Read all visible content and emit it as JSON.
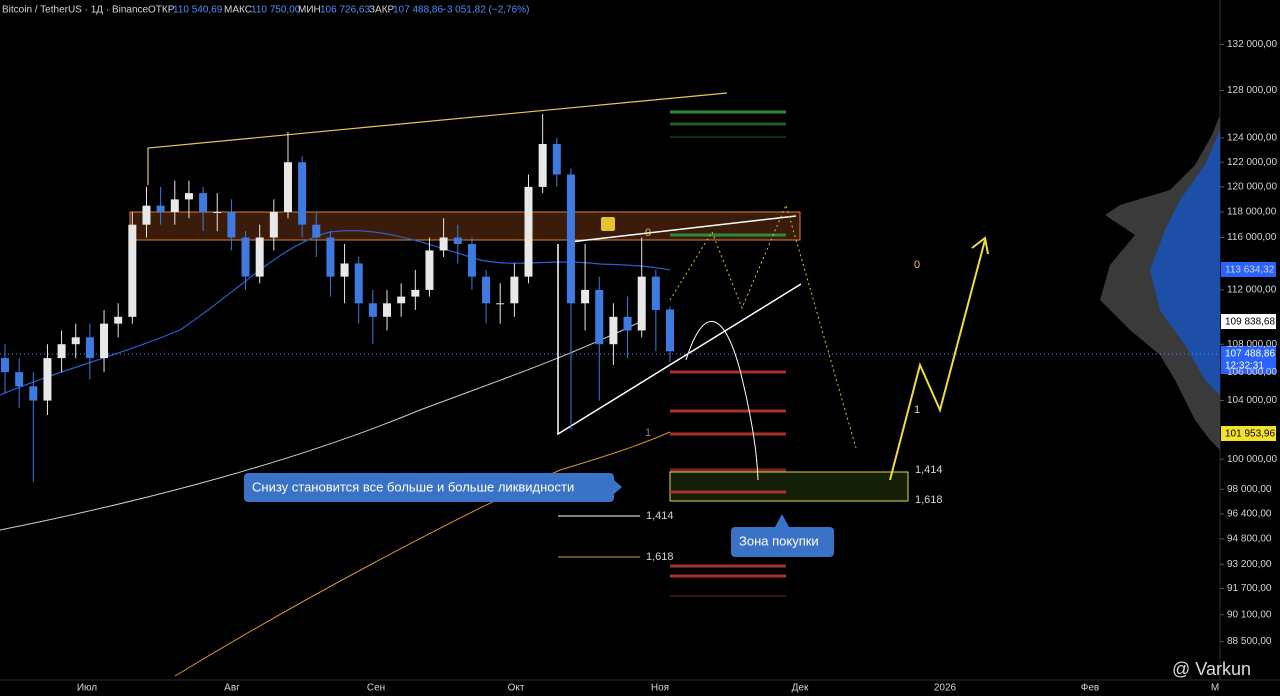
{
  "header": {
    "symbol": "Bitcoin / TetherUS · 1Д · Binance",
    "open_label": "ОТКР",
    "open": "110 540,69",
    "high_label": "МАКС",
    "high": "110 750,00",
    "low_label": "МИН",
    "low": "106 726,63",
    "close_label": "ЗАКР",
    "close": "107 488,86",
    "change": "−3 051,82 (−2,76%)"
  },
  "chart_data": {
    "type": "candlestick",
    "log_scale": true,
    "up_color": "#e8e8e8",
    "down_color": "#3d7be0",
    "open": [
      107000,
      106000,
      105000,
      104000,
      107000,
      108000,
      108500,
      107000,
      109500,
      110000,
      117000,
      118500,
      118000,
      119000,
      119500,
      118000,
      118000,
      116000,
      113000,
      116000,
      118000,
      122000,
      117000,
      116000,
      113000,
      114000,
      111000,
      110000,
      111000,
      111500,
      112000,
      115000,
      116000,
      115500,
      113000,
      111000,
      111000,
      113000,
      120000,
      123500,
      121000,
      111000,
      112000,
      108000,
      110000,
      109000,
      113000,
      110540.69
    ],
    "high": [
      108000,
      107000,
      106000,
      108000,
      109000,
      109500,
      109500,
      110500,
      111000,
      118000,
      120000,
      120000,
      120500,
      120500,
      120000,
      119500,
      119000,
      116500,
      117000,
      119000,
      124500,
      122500,
      118000,
      116500,
      115500,
      114500,
      112000,
      112000,
      112500,
      113500,
      116000,
      117500,
      117000,
      116000,
      113500,
      112500,
      114000,
      121000,
      126000,
      124000,
      121500,
      115500,
      113000,
      111000,
      111500,
      116000,
      113500,
      110750
    ],
    "low": [
      104500,
      103500,
      98500,
      103000,
      106000,
      107000,
      105500,
      106000,
      108500,
      109500,
      116000,
      117000,
      117000,
      117500,
      116500,
      116500,
      115000,
      112000,
      112500,
      115000,
      117500,
      116000,
      114500,
      111500,
      111000,
      109500,
      108000,
      109000,
      110000,
      110500,
      111500,
      114500,
      114000,
      112000,
      109500,
      109500,
      110000,
      112500,
      119500,
      120000,
      102000,
      109000,
      104000,
      106500,
      107000,
      108500,
      107500,
      106726.63
    ],
    "close": [
      106000,
      105000,
      104000,
      107000,
      108000,
      108500,
      107000,
      109500,
      110000,
      117000,
      118500,
      118000,
      119000,
      119500,
      118000,
      118000,
      116000,
      113000,
      116000,
      118000,
      122000,
      117000,
      116000,
      113000,
      114000,
      111000,
      110000,
      111000,
      111500,
      112000,
      115000,
      116000,
      115500,
      113000,
      111000,
      111000,
      113000,
      120000,
      123500,
      121000,
      111000,
      112000,
      108000,
      110000,
      109000,
      113000,
      110500,
      107488.86
    ],
    "ylim": [
      86250,
      136000
    ],
    "yticks": [
      {
        "value": 132000,
        "label": "132 000,00"
      },
      {
        "value": 128000,
        "label": "128 000,00"
      },
      {
        "value": 124000,
        "label": "124 000,00"
      },
      {
        "value": 122000,
        "label": "122 000,00"
      },
      {
        "value": 120000,
        "label": "120 000,00"
      },
      {
        "value": 118000,
        "label": "118 000,00"
      },
      {
        "value": 116000,
        "label": "116 000,00"
      },
      {
        "value": 112000,
        "label": "112 000,00"
      },
      {
        "value": 108000,
        "label": "108 000,00"
      },
      {
        "value": 106000,
        "label": "106 000,00"
      },
      {
        "value": 104000,
        "label": "104 000,00"
      },
      {
        "value": 100000,
        "label": "100 000,00"
      },
      {
        "value": 98000,
        "label": "98 000,00"
      },
      {
        "value": 96400,
        "label": "96 400,00"
      },
      {
        "value": 94800,
        "label": "94 800,00"
      },
      {
        "value": 93200,
        "label": "93 200,00"
      },
      {
        "value": 91700,
        "label": "91 700,00"
      },
      {
        "value": 90100,
        "label": "90 100,00"
      },
      {
        "value": 88500,
        "label": "88 500,00"
      }
    ],
    "categories": [
      "Июл",
      "Авг",
      "Сен",
      "Окт",
      "Ноя",
      "Дек",
      "2026",
      "Фев",
      "М"
    ]
  },
  "price_labels": [
    "113 634,32",
    "109 838,68",
    "107 488,86",
    "12:32:31",
    "101 953,96"
  ],
  "annotations": {
    "liquidity": "Снизу становится все больше и больше ликвидности",
    "buy_zone": "Зона покупки",
    "fib": [
      "0",
      "1",
      "1,414",
      "1,618"
    ]
  },
  "watermark": "@ Varkun"
}
